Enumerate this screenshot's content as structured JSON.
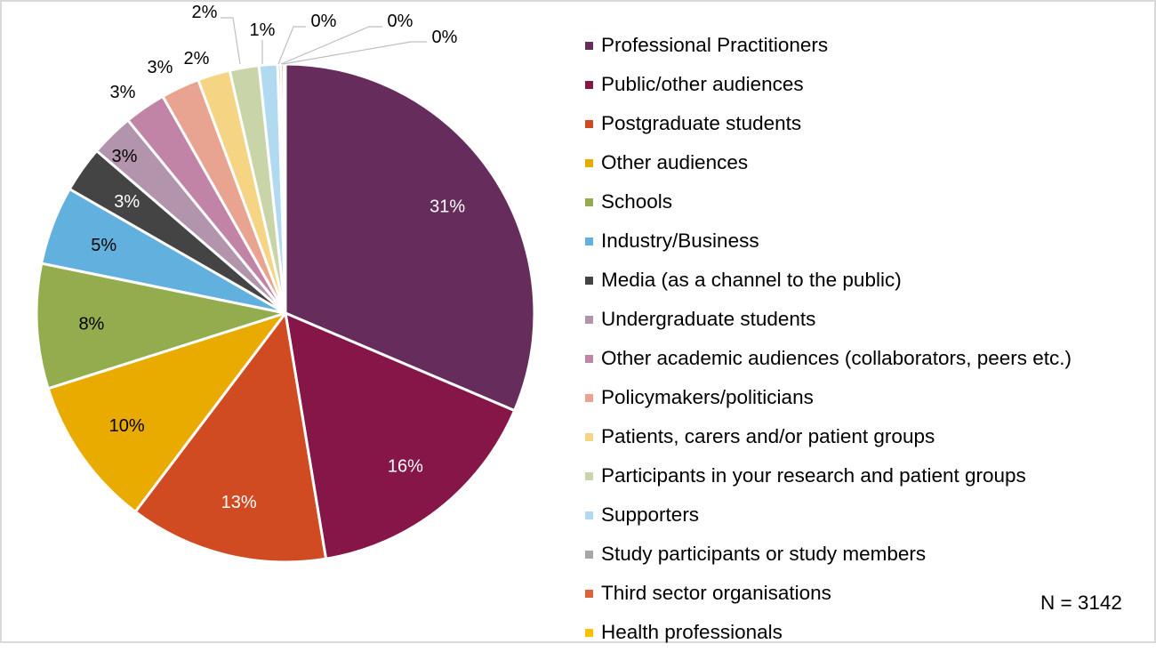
{
  "chart_data": {
    "type": "pie",
    "title": "",
    "annotation": "N = 3142",
    "legend_position": "right",
    "start_angle_deg": 0,
    "direction": "clockwise",
    "categories": [
      "Professional Practitioners",
      "Public/other audiences",
      "Postgraduate students",
      "Other audiences",
      "Schools",
      "Industry/Business",
      "Media (as a channel to the public)",
      "Undergraduate students",
      "Other academic audiences (collaborators, peers etc.)",
      "Policymakers/politicians",
      "Patients, carers and/or patient groups",
      "Participants in your research and patient groups",
      "Supporters",
      "Study participants or study members",
      "Third sector organisations",
      "Health professionals"
    ],
    "values": [
      31.4,
      16.0,
      12.9,
      9.8,
      8.1,
      5.1,
      3.0,
      2.8,
      2.7,
      2.5,
      2.1,
      1.9,
      1.2,
      0.2,
      0.2,
      0.1
    ],
    "labels": [
      "31%",
      "16%",
      "13%",
      "10%",
      "8%",
      "5%",
      "3%",
      "3%",
      "3%",
      "3%",
      "2%",
      "2%",
      "1%",
      "0%",
      "0%",
      "0%"
    ],
    "colors": [
      "#652c5c",
      "#861548",
      "#d04a22",
      "#eaab00",
      "#93ad4e",
      "#62b0dd",
      "#444444",
      "#b394ad",
      "#c184a6",
      "#e8a491",
      "#f5d484",
      "#c9d5a8",
      "#b1d9ef",
      "#a6a6a6",
      "#e0623c",
      "#ffc000"
    ],
    "label_colors": [
      "#ffffff",
      "#ffffff",
      "#ffffff",
      "#000000",
      "#000000",
      "#000000",
      "#ffffff",
      "#000000",
      "#000000",
      "#000000",
      "#000000",
      "#000000",
      "#000000",
      "#000000",
      "#000000",
      "#000000"
    ]
  },
  "legend": {
    "items": [
      {
        "label": "Professional Practitioners",
        "color": "#652c5c"
      },
      {
        "label": "Public/other audiences",
        "color": "#861548"
      },
      {
        "label": "Postgraduate students",
        "color": "#d04a22"
      },
      {
        "label": "Other audiences",
        "color": "#eaab00"
      },
      {
        "label": "Schools",
        "color": "#93ad4e"
      },
      {
        "label": "Industry/Business",
        "color": "#62b0dd"
      },
      {
        "label": "Media (as a channel to the public)",
        "color": "#444444"
      },
      {
        "label": "Undergraduate students",
        "color": "#b394ad"
      },
      {
        "label": "Other academic audiences (collaborators, peers etc.)",
        "color": "#c184a6"
      },
      {
        "label": "Policymakers/politicians",
        "color": "#e8a491"
      },
      {
        "label": "Patients, carers and/or patient groups",
        "color": "#f5d484"
      },
      {
        "label": "Participants in your research and patient groups",
        "color": "#c9d5a8"
      },
      {
        "label": "Supporters",
        "color": "#b1d9ef"
      },
      {
        "label": "Study participants or study members",
        "color": "#a6a6a6"
      },
      {
        "label": "Third sector organisations",
        "color": "#e0623c"
      },
      {
        "label": "Health professionals",
        "color": "#ffc000"
      }
    ]
  },
  "annotation": {
    "n_text": "N = 3142"
  }
}
